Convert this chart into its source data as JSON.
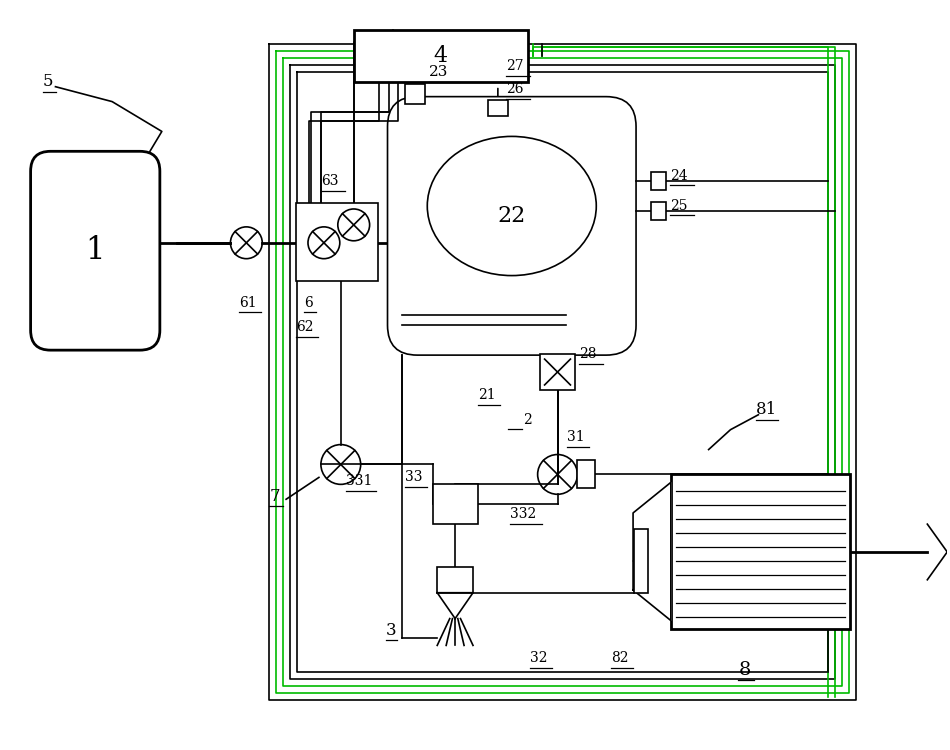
{
  "bg": "#ffffff",
  "lc": "#000000",
  "gc": "#00bb00",
  "fig_w": 9.5,
  "fig_h": 7.5
}
